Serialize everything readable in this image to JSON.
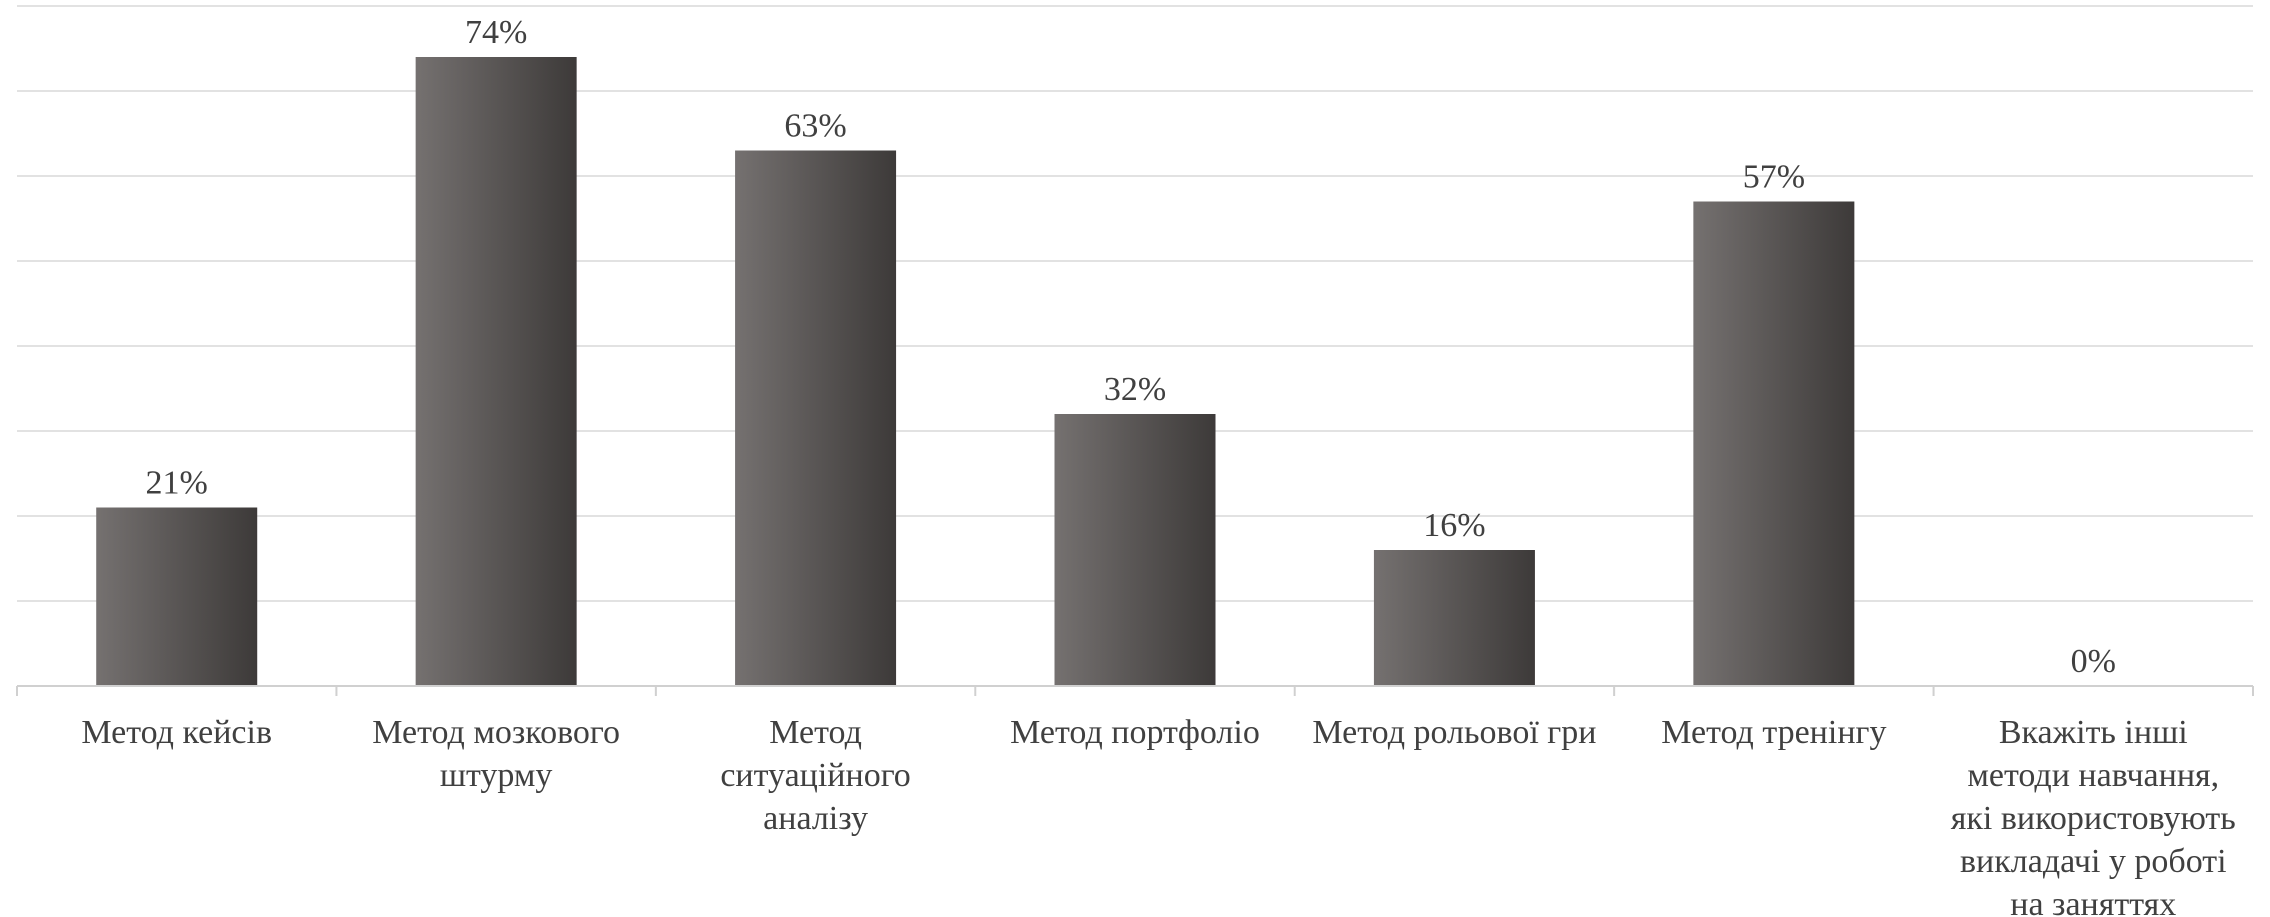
{
  "chart_data": {
    "type": "bar",
    "categories": [
      [
        "Метод кейсів"
      ],
      [
        "Метод мозкового",
        "штурму"
      ],
      [
        "Метод",
        "ситуаційного",
        "аналізу"
      ],
      [
        "Метод портфоліо"
      ],
      [
        "Метод рольової гри"
      ],
      [
        "Метод тренінгу"
      ],
      [
        "Вкажіть інші",
        "методи навчання,",
        "які використовують",
        "викладачі у роботі",
        "на заняттях"
      ]
    ],
    "values": [
      21,
      74,
      63,
      32,
      16,
      57,
      0
    ],
    "data_labels": [
      "21%",
      "74%",
      "63%",
      "32%",
      "16%",
      "57%",
      "0%"
    ],
    "ylim": [
      0,
      80
    ],
    "y_grid_step": 10,
    "grid": true,
    "y_axis_visible": false,
    "title": "",
    "xlabel": "",
    "ylabel": "",
    "colors": {
      "bar_light": "#757170",
      "bar_dark": "#3d3a39",
      "grid": "#d9d9d9",
      "axis": "#d0d0d0",
      "text": "#404040"
    }
  }
}
